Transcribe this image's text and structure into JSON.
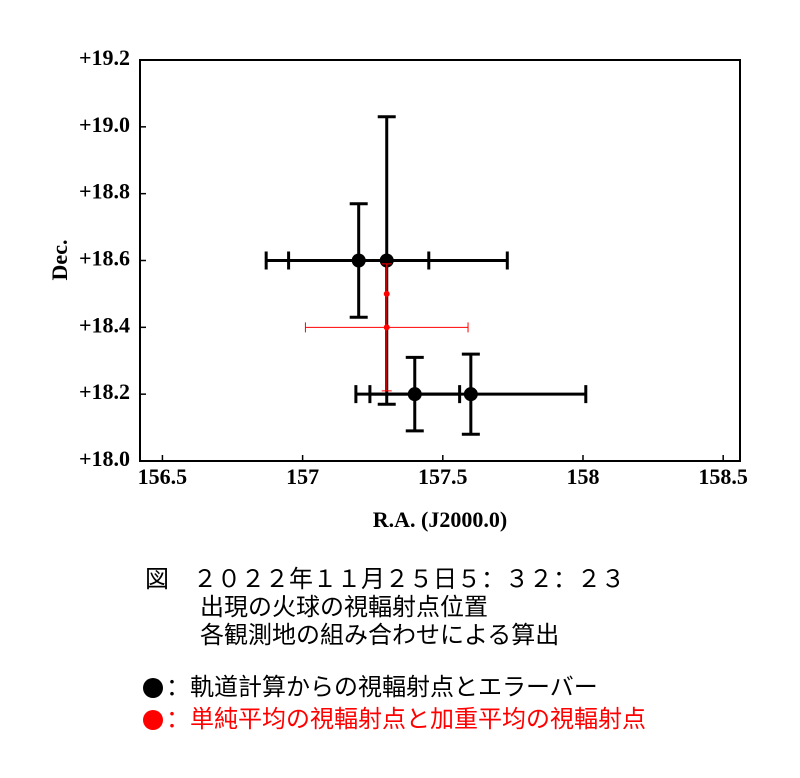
{
  "chart_data": {
    "type": "scatter",
    "xlabel": "R.A. (J2000.0)",
    "ylabel": "Dec.",
    "xlim": [
      156.42,
      158.56
    ],
    "xticks": [
      156.5,
      157,
      157.5,
      158,
      158.5
    ],
    "ylim": [
      18.0,
      19.2
    ],
    "yticks": [
      {
        "value": 18.0,
        "label": "+18.0"
      },
      {
        "value": 18.2,
        "label": "+18.2"
      },
      {
        "value": 18.4,
        "label": "+18.4"
      },
      {
        "value": 18.6,
        "label": "+18.6"
      },
      {
        "value": 18.8,
        "label": "+18.8"
      },
      {
        "value": 19.0,
        "label": "+19.0"
      },
      {
        "value": 19.2,
        "label": "+19.2"
      }
    ],
    "series": [
      {
        "name": "：軌道計算からの視輻射点とエラーバー",
        "color": "#000000",
        "x": [
          157.2,
          157.3,
          157.4,
          157.6
        ],
        "values": [
          18.6,
          18.6,
          18.2,
          18.2
        ],
        "xerr": [
          0.25,
          0.43,
          0.16,
          0.41
        ],
        "yerr": [
          0.17,
          0.43,
          0.11,
          0.12
        ]
      },
      {
        "name": "：単純平均の視輻射点と加重平均の視輻射点",
        "color": "#ff0000",
        "x": [
          157.3,
          157.3
        ],
        "values": [
          18.4,
          18.5
        ],
        "xerr": [
          0.29,
          null
        ],
        "yerr": [
          0.19,
          null
        ]
      }
    ],
    "caption": [
      "図　２０２２年１１月２５日５：３２：２３",
      "出現の火球の視輻射点位置",
      "各観測地の組み合わせによる算出"
    ]
  }
}
